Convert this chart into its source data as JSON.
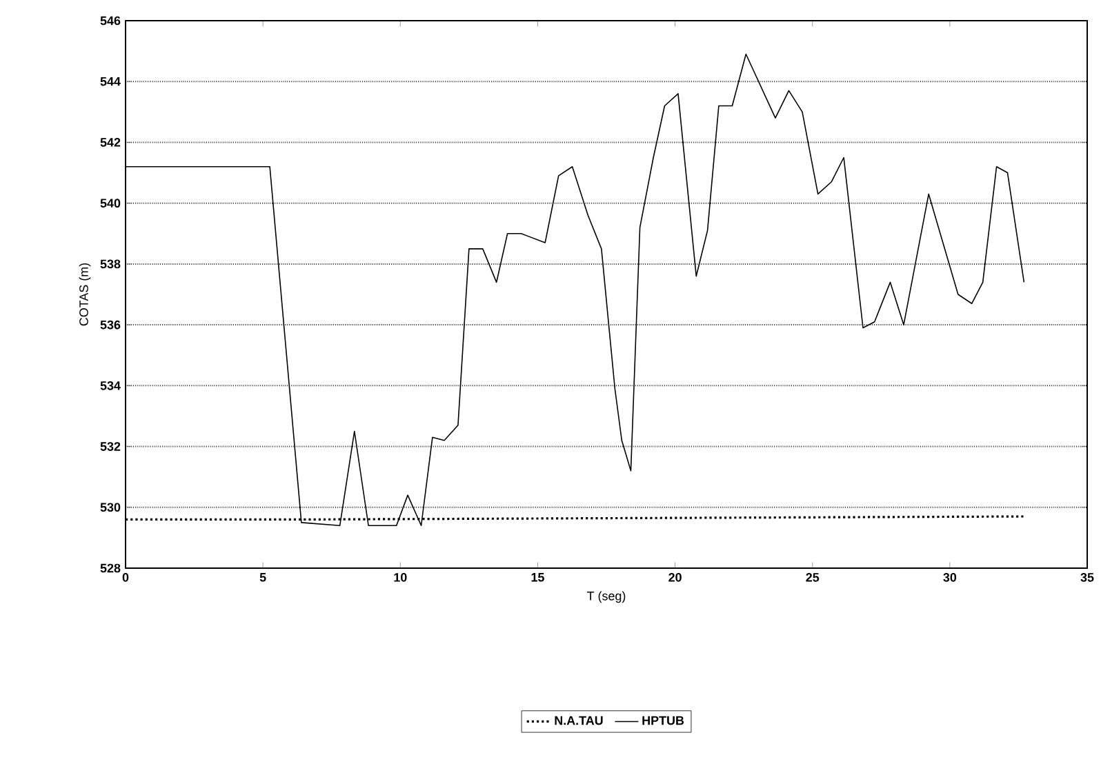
{
  "chart_data": {
    "type": "line",
    "xlabel": "T (seg)",
    "ylabel": "COTAS (m)",
    "xlim": [
      0,
      35
    ],
    "xticks": [
      0,
      5,
      10,
      15,
      20,
      25,
      30,
      35
    ],
    "ylim": [
      528,
      546
    ],
    "yticks": [
      528,
      530,
      532,
      534,
      536,
      538,
      540,
      542,
      544,
      546
    ],
    "grid": "y",
    "legend": "bottom",
    "marker": "none",
    "series": [
      {
        "name": "N.A.TAU",
        "color": "#000000",
        "line_style": "dotted",
        "x": [
          0,
          6.4,
          32.7
        ],
        "values": [
          529.6,
          529.6,
          529.7
        ]
      },
      {
        "name": "HPTUB",
        "color": "#000000",
        "line_style": "solid",
        "x": [
          0,
          5.25,
          6.4,
          7.8,
          8.33,
          8.84,
          9.86,
          10.27,
          10.76,
          11.17,
          11.6,
          12.1,
          12.5,
          13.0,
          13.5,
          13.9,
          14.4,
          15.27,
          15.76,
          16.26,
          16.83,
          17.32,
          17.81,
          18.06,
          18.39,
          18.72,
          19.21,
          19.62,
          20.11,
          20.77,
          21.18,
          21.59,
          22.08,
          22.58,
          23.65,
          24.14,
          24.63,
          25.2,
          25.69,
          26.14,
          26.84,
          27.26,
          27.83,
          28.32,
          29.23,
          30.3,
          30.8,
          31.2,
          31.7,
          32.1,
          32.7
        ],
        "values": [
          541.2,
          541.2,
          529.5,
          529.4,
          532.5,
          529.4,
          529.4,
          530.4,
          529.4,
          532.3,
          532.2,
          532.7,
          538.5,
          538.5,
          537.4,
          539.0,
          539.0,
          538.7,
          540.9,
          541.2,
          539.6,
          538.5,
          533.9,
          532.2,
          531.2,
          539.2,
          541.5,
          543.2,
          543.6,
          537.6,
          539.1,
          543.2,
          543.2,
          544.9,
          542.8,
          543.7,
          543.0,
          540.3,
          540.7,
          541.5,
          535.9,
          536.1,
          537.4,
          536.0,
          540.3,
          537.0,
          536.7,
          537.4,
          541.2,
          541.0,
          537.4
        ]
      }
    ]
  }
}
